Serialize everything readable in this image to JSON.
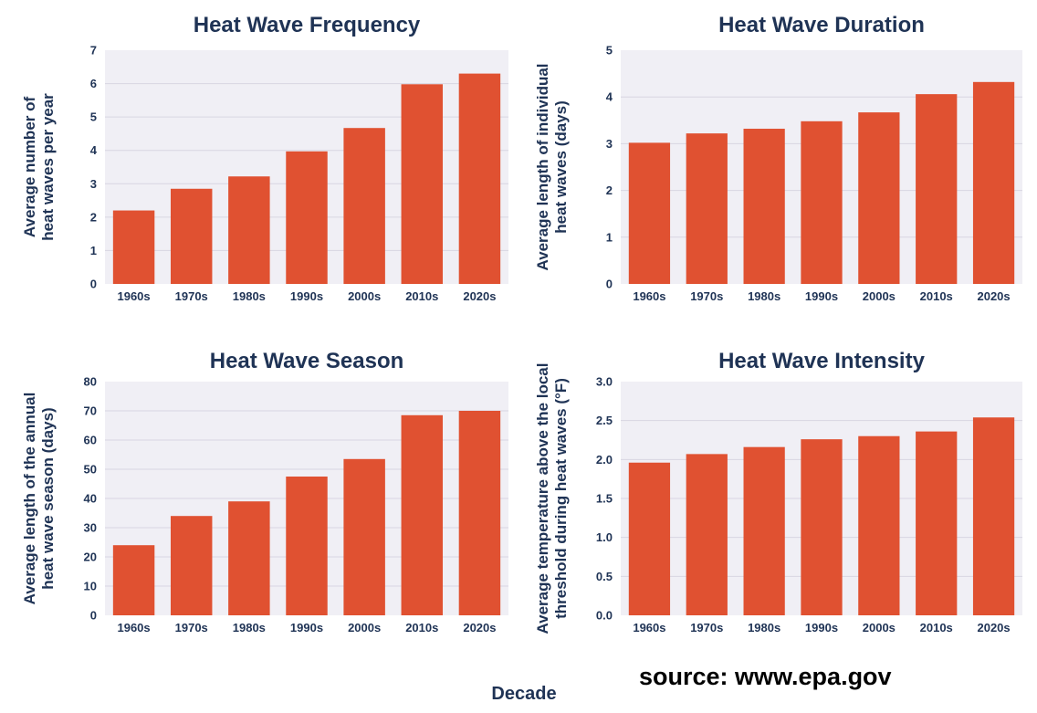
{
  "colors": {
    "bar": "#e05131",
    "plot_bg": "#f0eff5",
    "grid": "#d8d6e2",
    "text": "#1f3355"
  },
  "x_axis_label": "Decade",
  "source": "source: www.epa.gov",
  "chart_data": [
    {
      "type": "bar",
      "title": "Heat Wave Frequency",
      "ylabel": [
        "Average number of",
        "heat waves per year"
      ],
      "categories": [
        "1960s",
        "1970s",
        "1980s",
        "1990s",
        "2000s",
        "2010s",
        "2020s"
      ],
      "values": [
        2.2,
        2.85,
        3.22,
        3.97,
        4.67,
        5.98,
        6.3
      ],
      "ylim": [
        0,
        7
      ],
      "yticks": [
        "0",
        "1",
        "2",
        "3",
        "4",
        "5",
        "6",
        "7"
      ],
      "grid": true
    },
    {
      "type": "bar",
      "title": "Heat Wave Duration",
      "ylabel": [
        "Average length of individual",
        "heat waves (days)"
      ],
      "categories": [
        "1960s",
        "1970s",
        "1980s",
        "1990s",
        "2000s",
        "2010s",
        "2020s"
      ],
      "values": [
        3.02,
        3.22,
        3.32,
        3.48,
        3.67,
        4.06,
        4.32
      ],
      "ylim": [
        0,
        5
      ],
      "yticks": [
        "0",
        "1",
        "2",
        "3",
        "4",
        "5"
      ],
      "grid": true
    },
    {
      "type": "bar",
      "title": "Heat Wave Season",
      "ylabel": [
        "Average length of the annual",
        "heat wave season (days)"
      ],
      "categories": [
        "1960s",
        "1970s",
        "1980s",
        "1990s",
        "2000s",
        "2010s",
        "2020s"
      ],
      "values": [
        24,
        34,
        39,
        47.5,
        53.5,
        68.5,
        70
      ],
      "ylim": [
        0,
        80
      ],
      "yticks": [
        "0",
        "10",
        "20",
        "30",
        "40",
        "50",
        "60",
        "70",
        "80"
      ],
      "grid": true
    },
    {
      "type": "bar",
      "title": "Heat Wave Intensity",
      "ylabel": [
        "Average temperature above the local",
        "threshold during heat waves (°F)"
      ],
      "categories": [
        "1960s",
        "1970s",
        "1980s",
        "1990s",
        "2000s",
        "2010s",
        "2020s"
      ],
      "values": [
        1.96,
        2.07,
        2.16,
        2.26,
        2.3,
        2.36,
        2.54
      ],
      "ylim": [
        0,
        3
      ],
      "yticks": [
        "0.0",
        "0.5",
        "1.0",
        "1.5",
        "2.0",
        "2.5",
        "3.0"
      ],
      "grid": true
    }
  ]
}
